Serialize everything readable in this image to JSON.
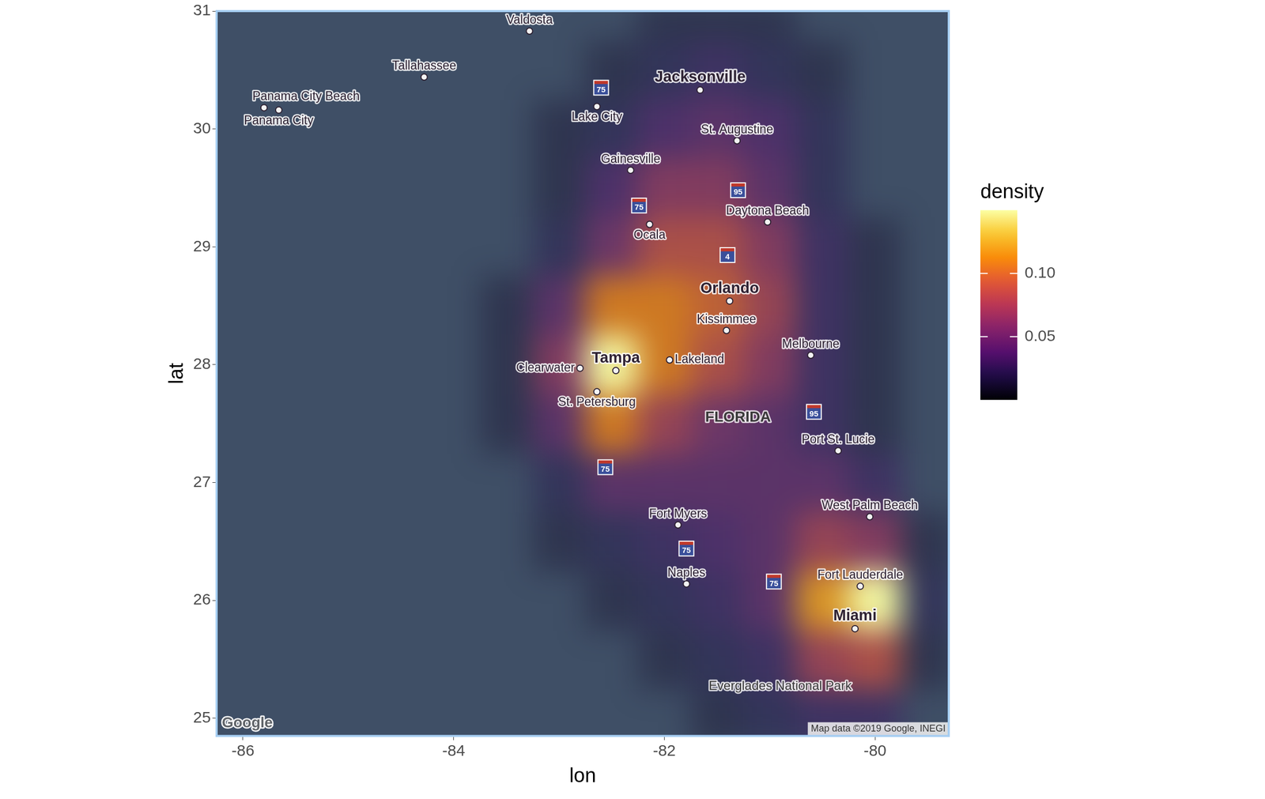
{
  "chart_data": {
    "type": "density_map",
    "x_label": "lon",
    "y_label": "lat",
    "xlim": [
      -86.25,
      -79.3
    ],
    "ylim": [
      24.85,
      31.0
    ],
    "xticks": [
      -86,
      -84,
      -82,
      -80
    ],
    "yticks": [
      25,
      26,
      27,
      28,
      29,
      30,
      31
    ],
    "grid": false,
    "density": {
      "lon": [
        -86,
        -85.5,
        -85,
        -84.5,
        -84,
        -83.5,
        -83,
        -82.5,
        -82,
        -81.5,
        -81,
        -80.5,
        -80,
        -79.5
      ],
      "lat": [
        31,
        30.5,
        30,
        29.5,
        29,
        28.5,
        28,
        27.5,
        27,
        26.5,
        26,
        25.5,
        25
      ],
      "values": [
        [
          0,
          0,
          0,
          0,
          0,
          0,
          0,
          0,
          0.01,
          0.01,
          0.01,
          0,
          0,
          0
        ],
        [
          0,
          0,
          0,
          0,
          0,
          0,
          0,
          0.01,
          0.02,
          0.03,
          0.02,
          0.01,
          0,
          0
        ],
        [
          0,
          0,
          0,
          0,
          0,
          0,
          0.01,
          0.02,
          0.04,
          0.05,
          0.04,
          0.02,
          0,
          0
        ],
        [
          0,
          0,
          0,
          0,
          0,
          0,
          0.01,
          0.04,
          0.07,
          0.07,
          0.05,
          0.02,
          0,
          0
        ],
        [
          0,
          0,
          0,
          0,
          0,
          0,
          0.02,
          0.06,
          0.09,
          0.09,
          0.07,
          0.03,
          0.01,
          0
        ],
        [
          0,
          0,
          0,
          0,
          0,
          0.01,
          0.05,
          0.11,
          0.11,
          0.1,
          0.08,
          0.03,
          0.01,
          0
        ],
        [
          0,
          0,
          0,
          0,
          0,
          0.01,
          0.07,
          0.15,
          0.11,
          0.09,
          0.07,
          0.03,
          0.01,
          0
        ],
        [
          0,
          0,
          0,
          0,
          0,
          0.01,
          0.05,
          0.11,
          0.08,
          0.06,
          0.05,
          0.03,
          0.01,
          0
        ],
        [
          0,
          0,
          0,
          0,
          0,
          0,
          0.02,
          0.05,
          0.05,
          0.05,
          0.05,
          0.05,
          0.03,
          0
        ],
        [
          0,
          0,
          0,
          0,
          0,
          0,
          0.01,
          0.02,
          0.03,
          0.04,
          0.05,
          0.08,
          0.07,
          0.01
        ],
        [
          0,
          0,
          0,
          0,
          0,
          0,
          0,
          0.01,
          0.02,
          0.03,
          0.05,
          0.12,
          0.15,
          0.02
        ],
        [
          0,
          0,
          0,
          0,
          0,
          0,
          0,
          0,
          0.01,
          0.02,
          0.03,
          0.08,
          0.09,
          0.01
        ],
        [
          0,
          0,
          0,
          0,
          0,
          0,
          0,
          0,
          0,
          0.01,
          0.02,
          0.03,
          0.03,
          0
        ]
      ]
    },
    "colorbar": {
      "title": "density",
      "range": [
        0,
        0.15
      ],
      "ticks": [
        0.05,
        {
          "value": 0.1,
          "label": "0.10"
        }
      ]
    },
    "cities": [
      {
        "name": "Valdosta",
        "lon": -83.28,
        "lat": 30.83
      },
      {
        "name": "Tallahassee",
        "lon": -84.28,
        "lat": 30.44
      },
      {
        "name": "Panama City Beach",
        "lon": -85.8,
        "lat": 30.18
      },
      {
        "name": "Panama City",
        "lon": -85.66,
        "lat": 30.16
      },
      {
        "name": "Jacksonville",
        "lon": -81.66,
        "lat": 30.33
      },
      {
        "name": "Lake City",
        "lon": -82.64,
        "lat": 30.19
      },
      {
        "name": "St. Augustine",
        "lon": -81.31,
        "lat": 29.9
      },
      {
        "name": "Gainesville",
        "lon": -82.32,
        "lat": 29.65
      },
      {
        "name": "Daytona Beach",
        "lon": -81.02,
        "lat": 29.21
      },
      {
        "name": "Ocala",
        "lon": -82.14,
        "lat": 29.19
      },
      {
        "name": "Orlando",
        "lon": -81.38,
        "lat": 28.54
      },
      {
        "name": "Kissimmee",
        "lon": -81.41,
        "lat": 28.29
      },
      {
        "name": "Tampa",
        "lon": -82.46,
        "lat": 27.95
      },
      {
        "name": "Clearwater",
        "lon": -82.8,
        "lat": 27.97
      },
      {
        "name": "Lakeland",
        "lon": -81.95,
        "lat": 28.04
      },
      {
        "name": "Melbourne",
        "lon": -80.61,
        "lat": 28.08
      },
      {
        "name": "St. Petersburg",
        "lon": -82.64,
        "lat": 27.77
      },
      {
        "name": "Port St. Lucie",
        "lon": -80.35,
        "lat": 27.27
      },
      {
        "name": "West Palm Beach",
        "lon": -80.05,
        "lat": 26.71
      },
      {
        "name": "Fort Myers",
        "lon": -81.87,
        "lat": 26.64
      },
      {
        "name": "Naples",
        "lon": -81.79,
        "lat": 26.14
      },
      {
        "name": "Fort Lauderdale",
        "lon": -80.14,
        "lat": 26.12
      },
      {
        "name": "Miami",
        "lon": -80.19,
        "lat": 25.76
      }
    ],
    "area_labels": [
      {
        "name": "FLORIDA",
        "lon": -81.3,
        "lat": 27.55
      },
      {
        "name": "Everglades National Park",
        "lon": -80.9,
        "lat": 25.27
      }
    ],
    "road_labels": [
      {
        "name": "75",
        "lon": -82.6,
        "lat": 30.35
      },
      {
        "name": "75",
        "lon": -82.24,
        "lat": 29.35
      },
      {
        "name": "75",
        "lon": -82.56,
        "lat": 27.13
      },
      {
        "name": "75",
        "lon": -81.79,
        "lat": 26.44
      },
      {
        "name": "75",
        "lon": -80.96,
        "lat": 26.16
      },
      {
        "name": "95",
        "lon": -81.3,
        "lat": 29.48
      },
      {
        "name": "95",
        "lon": -80.58,
        "lat": 27.6
      },
      {
        "name": "4",
        "lon": -81.4,
        "lat": 28.93
      }
    ],
    "attribution": [
      "Google",
      "Map data ©2019 Google, INEGI"
    ]
  }
}
